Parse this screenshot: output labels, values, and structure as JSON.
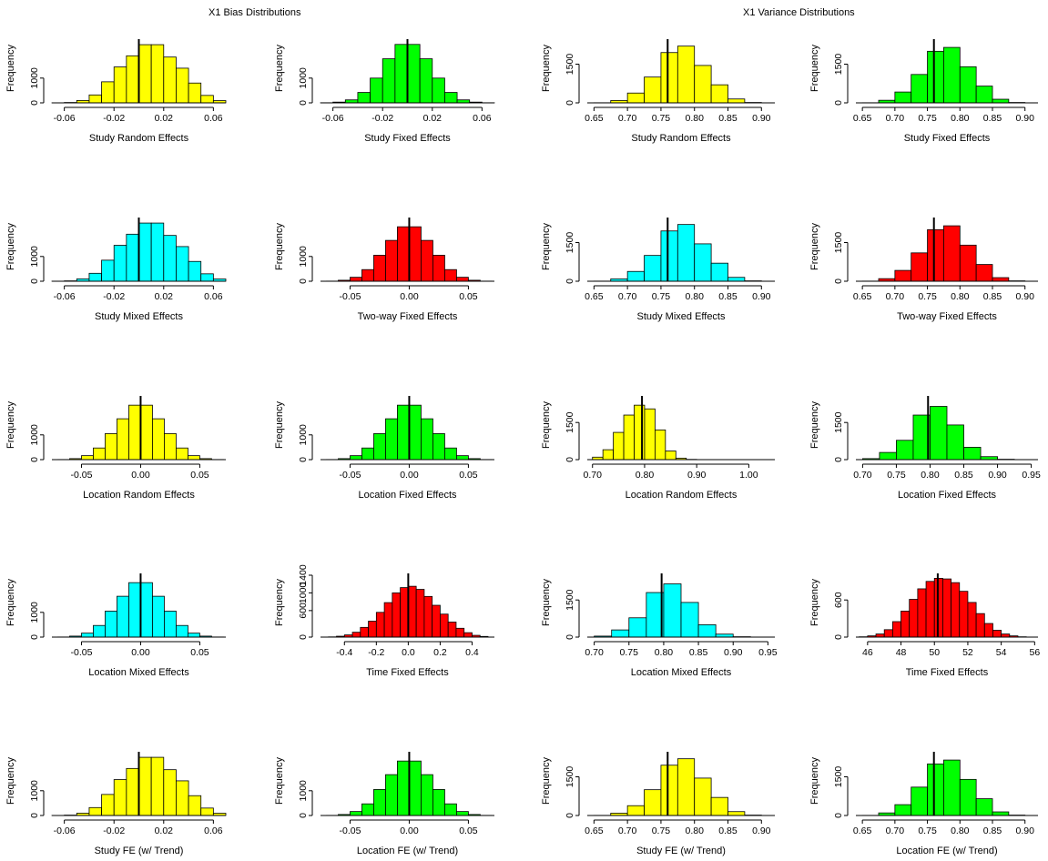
{
  "section_titles": {
    "bias": "X1 Bias Distributions",
    "variance": "X1 Variance Distributions"
  },
  "colors": {
    "yellow": "#ffff00",
    "green": "#00ff00",
    "cyan": "#00ffff",
    "red": "#ff0000",
    "outline": "#000000",
    "marker": "#000000"
  },
  "chart_data": [
    {
      "type": "bar",
      "xlabel": "Study Random Effects",
      "ylabel": "Frequency",
      "color": "yellow",
      "breaks": [
        -0.07,
        -0.06,
        -0.05,
        -0.04,
        -0.03,
        -0.02,
        -0.01,
        0,
        0.01,
        0.02,
        0.03,
        0.04,
        0.05,
        0.06,
        0.07
      ],
      "values": [
        2,
        15,
        95,
        320,
        850,
        1450,
        1900,
        2350,
        2350,
        1850,
        1400,
        800,
        300,
        90
      ],
      "xlim": [
        -0.07,
        0.07
      ],
      "xticks": [
        "-0.06",
        "-0.02",
        "0.02",
        "0.06"
      ],
      "yticks": [
        "0",
        "1000"
      ],
      "ylim": [
        0,
        2500
      ],
      "marker": 0
    },
    {
      "type": "bar",
      "xlabel": "Study Fixed Effects",
      "ylabel": "Frequency",
      "color": "green",
      "breaks": [
        -0.07,
        -0.06,
        -0.05,
        -0.04,
        -0.03,
        -0.02,
        -0.01,
        0,
        0.01,
        0.02,
        0.03,
        0.04,
        0.05,
        0.06,
        0.07
      ],
      "values": [
        5,
        30,
        120,
        420,
        1000,
        1780,
        2360,
        2360,
        1780,
        1000,
        420,
        120,
        30,
        5
      ],
      "xlim": [
        -0.07,
        0.07
      ],
      "xticks": [
        "-0.06",
        "-0.02",
        "0.02",
        "0.06"
      ],
      "yticks": [
        "0",
        "1000"
      ],
      "ylim": [
        0,
        2500
      ],
      "marker": 0
    },
    {
      "type": "bar",
      "xlabel": "Study Random Effects",
      "ylabel": "Frequency",
      "color": "yellow",
      "breaks": [
        0.65,
        0.675,
        0.7,
        0.725,
        0.75,
        0.775,
        0.8,
        0.825,
        0.85,
        0.875,
        0.9
      ],
      "values": [
        5,
        90,
        380,
        1000,
        1950,
        2200,
        1450,
        700,
        150,
        15
      ],
      "xlim": [
        0.64,
        0.92
      ],
      "xticks": [
        "0.65",
        "0.70",
        "0.75",
        "0.80",
        "0.85",
        "0.90"
      ],
      "yticks": [
        "0",
        "1500"
      ],
      "ylim": [
        0,
        2400
      ],
      "marker": 0.76
    },
    {
      "type": "bar",
      "xlabel": "Study Fixed Effects",
      "ylabel": "Frequency",
      "color": "green",
      "breaks": [
        0.65,
        0.675,
        0.7,
        0.725,
        0.75,
        0.775,
        0.8,
        0.825,
        0.85,
        0.875,
        0.9
      ],
      "values": [
        5,
        100,
        420,
        1100,
        2000,
        2150,
        1400,
        650,
        140,
        15
      ],
      "xlim": [
        0.64,
        0.92
      ],
      "xticks": [
        "0.65",
        "0.70",
        "0.75",
        "0.80",
        "0.85",
        "0.90"
      ],
      "yticks": [
        "0",
        "1500"
      ],
      "ylim": [
        0,
        2400
      ],
      "marker": 0.76
    },
    {
      "type": "bar",
      "xlabel": "Study Mixed Effects",
      "ylabel": "Frequency",
      "color": "cyan",
      "breaks": [
        -0.07,
        -0.06,
        -0.05,
        -0.04,
        -0.03,
        -0.02,
        -0.01,
        0,
        0.01,
        0.02,
        0.03,
        0.04,
        0.05,
        0.06,
        0.07
      ],
      "values": [
        2,
        15,
        95,
        320,
        850,
        1450,
        1900,
        2350,
        2350,
        1850,
        1400,
        800,
        300,
        90
      ],
      "xlim": [
        -0.07,
        0.07
      ],
      "xticks": [
        "-0.06",
        "-0.02",
        "0.02",
        "0.06"
      ],
      "yticks": [
        "0",
        "1000"
      ],
      "ylim": [
        0,
        2500
      ],
      "marker": 0
    },
    {
      "type": "bar",
      "xlabel": "Two-way Fixed Effects",
      "ylabel": "Frequency",
      "color": "red",
      "breaks": [
        -0.07,
        -0.06,
        -0.05,
        -0.04,
        -0.03,
        -0.02,
        -0.01,
        0,
        0.01,
        0.02,
        0.03,
        0.04,
        0.05,
        0.06,
        0.07
      ],
      "values": [
        5,
        40,
        160,
        470,
        1050,
        1650,
        2200,
        2200,
        1650,
        1050,
        470,
        160,
        40,
        5
      ],
      "xlim": [
        -0.075,
        0.072
      ],
      "xticks": [
        "-0.05",
        "0.00",
        "0.05"
      ],
      "yticks": [
        "0",
        "1000"
      ],
      "ylim": [
        0,
        2500
      ],
      "marker": 0
    },
    {
      "type": "bar",
      "xlabel": "Study Mixed Effects",
      "ylabel": "Frequency",
      "color": "cyan",
      "breaks": [
        0.65,
        0.675,
        0.7,
        0.725,
        0.75,
        0.775,
        0.8,
        0.825,
        0.85,
        0.875,
        0.9
      ],
      "values": [
        5,
        90,
        380,
        1000,
        1950,
        2200,
        1450,
        700,
        150,
        15
      ],
      "xlim": [
        0.64,
        0.92
      ],
      "xticks": [
        "0.65",
        "0.70",
        "0.75",
        "0.80",
        "0.85",
        "0.90"
      ],
      "yticks": [
        "0",
        "1500"
      ],
      "ylim": [
        0,
        2400
      ],
      "marker": 0.76
    },
    {
      "type": "bar",
      "xlabel": "Two-way Fixed Effects",
      "ylabel": "Frequency",
      "color": "red",
      "breaks": [
        0.65,
        0.675,
        0.7,
        0.725,
        0.75,
        0.775,
        0.8,
        0.825,
        0.85,
        0.875,
        0.9
      ],
      "values": [
        5,
        100,
        420,
        1100,
        2000,
        2150,
        1400,
        650,
        140,
        15
      ],
      "xlim": [
        0.64,
        0.92
      ],
      "xticks": [
        "0.65",
        "0.70",
        "0.75",
        "0.80",
        "0.85",
        "0.90"
      ],
      "yticks": [
        "0",
        "1500"
      ],
      "ylim": [
        0,
        2400
      ],
      "marker": 0.76
    },
    {
      "type": "bar",
      "xlabel": "Location Random Effects",
      "ylabel": "Frequency",
      "color": "yellow",
      "breaks": [
        -0.07,
        -0.06,
        -0.05,
        -0.04,
        -0.03,
        -0.02,
        -0.01,
        0,
        0.01,
        0.02,
        0.03,
        0.04,
        0.05,
        0.06,
        0.07
      ],
      "values": [
        5,
        40,
        160,
        470,
        1050,
        1650,
        2200,
        2200,
        1650,
        1050,
        470,
        160,
        40,
        5
      ],
      "xlim": [
        -0.075,
        0.072
      ],
      "xticks": [
        "-0.05",
        "0.00",
        "0.05"
      ],
      "yticks": [
        "0",
        "1000"
      ],
      "ylim": [
        0,
        2500
      ],
      "marker": 0
    },
    {
      "type": "bar",
      "xlabel": "Location Fixed Effects",
      "ylabel": "Frequency",
      "color": "green",
      "breaks": [
        -0.07,
        -0.06,
        -0.05,
        -0.04,
        -0.03,
        -0.02,
        -0.01,
        0,
        0.01,
        0.02,
        0.03,
        0.04,
        0.05,
        0.06,
        0.07
      ],
      "values": [
        5,
        40,
        160,
        470,
        1050,
        1650,
        2200,
        2200,
        1650,
        1050,
        470,
        160,
        40,
        5
      ],
      "xlim": [
        -0.075,
        0.072
      ],
      "xticks": [
        "-0.05",
        "0.00",
        "0.05"
      ],
      "yticks": [
        "0",
        "1000"
      ],
      "ylim": [
        0,
        2500
      ],
      "marker": 0
    },
    {
      "type": "bar",
      "xlabel": "Location Random Effects",
      "ylabel": "Frequency",
      "color": "yellow",
      "breaks": [
        0.7,
        0.72,
        0.74,
        0.76,
        0.78,
        0.8,
        0.82,
        0.84,
        0.86,
        0.88,
        0.9
      ],
      "values": [
        100,
        400,
        1100,
        1800,
        2200,
        2050,
        1200,
        350,
        60,
        10
      ],
      "xlim": [
        0.69,
        1.05
      ],
      "xticks": [
        "0.70",
        "0.80",
        "0.90",
        "1.00"
      ],
      "yticks": [
        "0",
        "1500"
      ],
      "ylim": [
        0,
        2500
      ],
      "marker": 0.795
    },
    {
      "type": "bar",
      "xlabel": "Location Fixed Effects",
      "ylabel": "Frequency",
      "color": "green",
      "breaks": [
        0.7,
        0.725,
        0.75,
        0.775,
        0.8,
        0.825,
        0.85,
        0.875,
        0.9,
        0.925
      ],
      "values": [
        40,
        290,
        780,
        1800,
        2150,
        1400,
        500,
        120,
        15
      ],
      "xlim": [
        0.69,
        0.96
      ],
      "xticks": [
        "0.70",
        "0.75",
        "0.80",
        "0.85",
        "0.90",
        "0.95"
      ],
      "yticks": [
        "0",
        "1500"
      ],
      "ylim": [
        0,
        2500
      ],
      "marker": 0.797
    },
    {
      "type": "bar",
      "xlabel": "Location Mixed Effects",
      "ylabel": "Frequency",
      "color": "cyan",
      "breaks": [
        -0.07,
        -0.06,
        -0.05,
        -0.04,
        -0.03,
        -0.02,
        -0.01,
        0,
        0.01,
        0.02,
        0.03,
        0.04,
        0.05,
        0.06,
        0.07
      ],
      "values": [
        5,
        40,
        160,
        470,
        1050,
        1650,
        2200,
        2200,
        1650,
        1050,
        470,
        160,
        40,
        5
      ],
      "xlim": [
        -0.075,
        0.072
      ],
      "xticks": [
        "-0.05",
        "0.00",
        "0.05"
      ],
      "yticks": [
        "0",
        "1000"
      ],
      "ylim": [
        0,
        2500
      ],
      "marker": 0
    },
    {
      "type": "bar",
      "xlabel": "Time Fixed Effects",
      "ylabel": "Frequency",
      "color": "red",
      "breaks": [
        -0.5,
        -0.45,
        -0.4,
        -0.35,
        -0.3,
        -0.25,
        -0.2,
        -0.15,
        -0.1,
        -0.05,
        0,
        0.05,
        0.1,
        0.15,
        0.2,
        0.25,
        0.3,
        0.35,
        0.4,
        0.45,
        0.5
      ],
      "values": [
        5,
        20,
        50,
        110,
        220,
        360,
        560,
        780,
        1000,
        1120,
        1150,
        1080,
        920,
        720,
        520,
        340,
        200,
        100,
        40,
        15
      ],
      "xlim": [
        -0.55,
        0.54
      ],
      "xticks": [
        "-0.4",
        "-0.2",
        "0.0",
        "0.2",
        "0.4"
      ],
      "yticks": [
        "0",
        "600",
        "1000",
        "1400"
      ],
      "ylim": [
        0,
        1400
      ],
      "marker": 0
    },
    {
      "type": "bar",
      "xlabel": "Location Mixed Effects",
      "ylabel": "Frequency",
      "color": "cyan",
      "breaks": [
        0.7,
        0.725,
        0.75,
        0.775,
        0.8,
        0.825,
        0.85,
        0.875,
        0.9,
        0.925
      ],
      "values": [
        40,
        290,
        780,
        1800,
        2150,
        1400,
        500,
        120,
        15
      ],
      "xlim": [
        0.69,
        0.96
      ],
      "xticks": [
        "0.70",
        "0.75",
        "0.80",
        "0.85",
        "0.90",
        "0.95"
      ],
      "yticks": [
        "0",
        "1500"
      ],
      "ylim": [
        0,
        2500
      ],
      "marker": 0.797
    },
    {
      "type": "bar",
      "xlabel": "Time Fixed Effects",
      "ylabel": "Frequency",
      "color": "red",
      "breaks": [
        45.5,
        46,
        46.5,
        47,
        47.5,
        48,
        48.5,
        49,
        49.5,
        50,
        50.5,
        51,
        51.5,
        52,
        52.5,
        53,
        53.5,
        54,
        54.5,
        55,
        55.5
      ],
      "values": [
        5,
        20,
        50,
        120,
        250,
        420,
        610,
        780,
        900,
        950,
        940,
        880,
        740,
        560,
        380,
        220,
        110,
        50,
        20,
        5
      ],
      "xlim": [
        45.3,
        56.2
      ],
      "xticks": [
        "46",
        "48",
        "50",
        "52",
        "54",
        "56"
      ],
      "yticks": [
        "0",
        "600"
      ],
      "ylim": [
        0,
        1000
      ],
      "marker": 50.2
    },
    {
      "type": "bar",
      "xlabel": "Study FE (w/ Trend)",
      "ylabel": "Frequency",
      "color": "yellow",
      "breaks": [
        -0.07,
        -0.06,
        -0.05,
        -0.04,
        -0.03,
        -0.02,
        -0.01,
        0,
        0.01,
        0.02,
        0.03,
        0.04,
        0.05,
        0.06,
        0.07
      ],
      "values": [
        2,
        15,
        95,
        320,
        850,
        1450,
        1900,
        2350,
        2350,
        1850,
        1400,
        800,
        300,
        90
      ],
      "xlim": [
        -0.07,
        0.07
      ],
      "xticks": [
        "-0.06",
        "-0.02",
        "0.02",
        "0.06"
      ],
      "yticks": [
        "0",
        "1000"
      ],
      "ylim": [
        0,
        2500
      ],
      "marker": 0
    },
    {
      "type": "bar",
      "xlabel": "Location FE (w/ Trend)",
      "ylabel": "Frequency",
      "color": "green",
      "breaks": [
        -0.07,
        -0.06,
        -0.05,
        -0.04,
        -0.03,
        -0.02,
        -0.01,
        0,
        0.01,
        0.02,
        0.03,
        0.04,
        0.05,
        0.06,
        0.07
      ],
      "values": [
        5,
        40,
        160,
        470,
        1050,
        1650,
        2200,
        2200,
        1650,
        1050,
        470,
        160,
        40,
        5
      ],
      "xlim": [
        -0.075,
        0.072
      ],
      "xticks": [
        "-0.05",
        "0.00",
        "0.05"
      ],
      "yticks": [
        "0",
        "1000"
      ],
      "ylim": [
        0,
        2500
      ],
      "marker": 0
    },
    {
      "type": "bar",
      "xlabel": "Study FE (w/ Trend)",
      "ylabel": "Frequency",
      "color": "yellow",
      "breaks": [
        0.65,
        0.675,
        0.7,
        0.725,
        0.75,
        0.775,
        0.8,
        0.825,
        0.85,
        0.875,
        0.9
      ],
      "values": [
        5,
        90,
        380,
        1000,
        1950,
        2200,
        1450,
        700,
        150,
        15
      ],
      "xlim": [
        0.64,
        0.92
      ],
      "xticks": [
        "0.65",
        "0.70",
        "0.75",
        "0.80",
        "0.85",
        "0.90"
      ],
      "yticks": [
        "0",
        "1500"
      ],
      "ylim": [
        0,
        2400
      ],
      "marker": 0.76
    },
    {
      "type": "bar",
      "xlabel": "Location FE (w/ Trend)",
      "ylabel": "Frequency",
      "color": "green",
      "breaks": [
        0.65,
        0.675,
        0.7,
        0.725,
        0.75,
        0.775,
        0.8,
        0.825,
        0.85,
        0.875,
        0.9
      ],
      "values": [
        5,
        100,
        420,
        1100,
        2000,
        2150,
        1400,
        650,
        140,
        15
      ],
      "xlim": [
        0.64,
        0.92
      ],
      "xticks": [
        "0.65",
        "0.70",
        "0.75",
        "0.80",
        "0.85",
        "0.90"
      ],
      "yticks": [
        "0",
        "1500"
      ],
      "ylim": [
        0,
        2400
      ],
      "marker": 0.76
    }
  ]
}
